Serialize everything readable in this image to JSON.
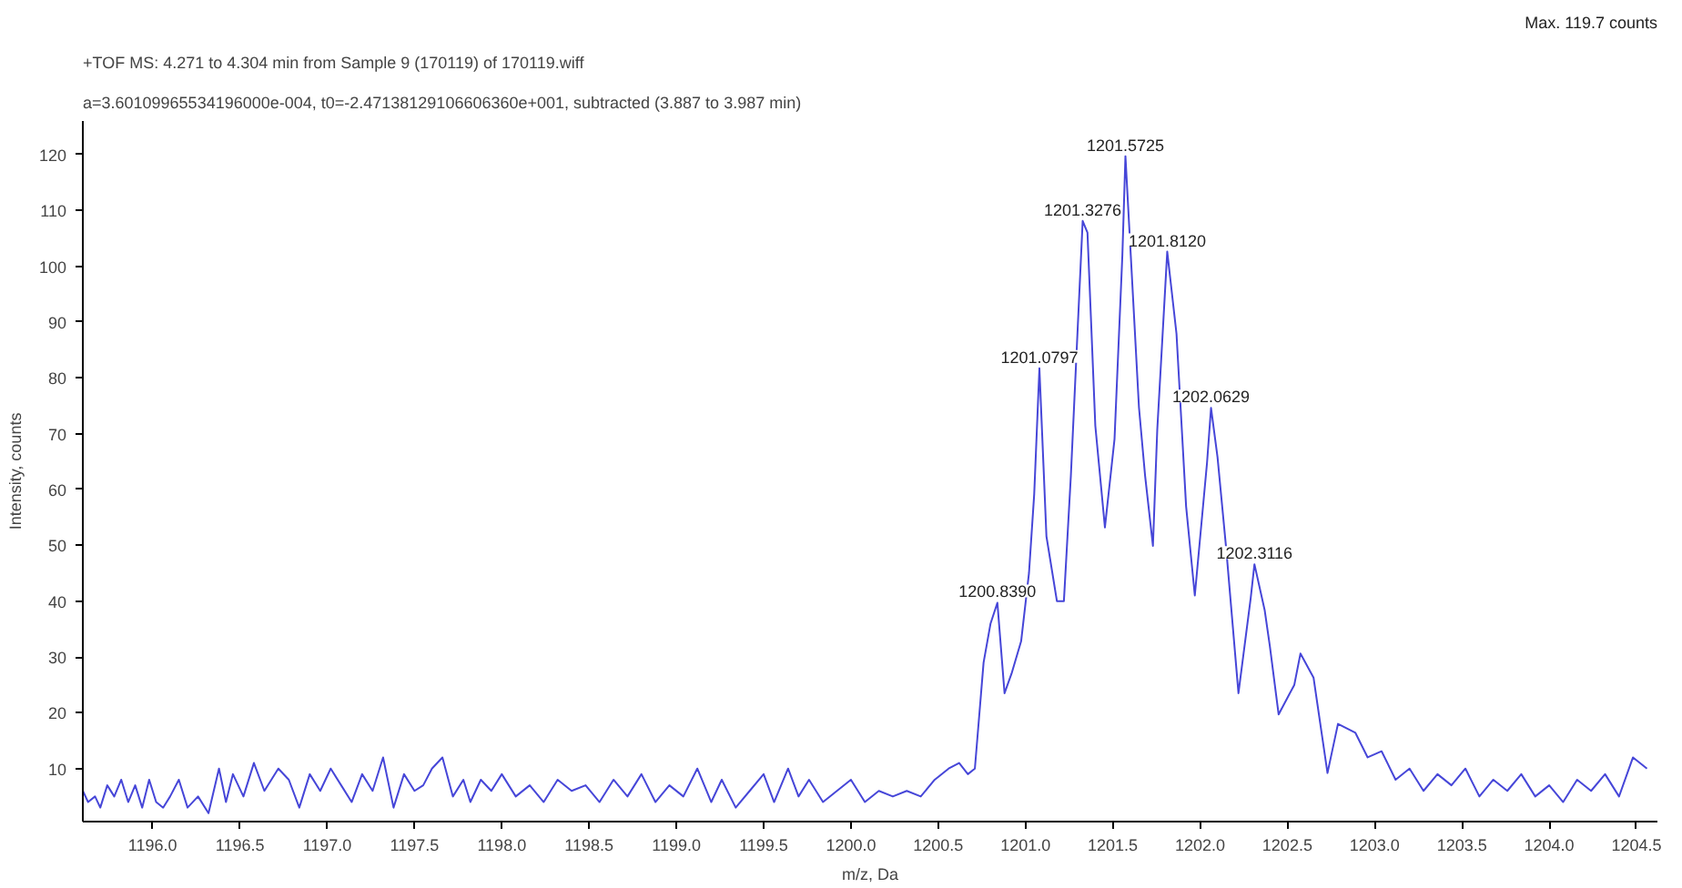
{
  "chart_data": {
    "type": "line",
    "title": "+TOF MS: 4.271 to 4.304 min from Sample 9 (170119) of 170119.wiff",
    "subtitle": "a=3.60109965534196000e-004, t0=-2.47138129106606360e+001, subtracted (3.887 to 3.987 min)",
    "xlabel": "m/z, Da",
    "ylabel": "Intensity, counts",
    "x": [
      1195.6,
      1195.63,
      1195.67,
      1195.7,
      1195.74,
      1195.78,
      1195.82,
      1195.86,
      1195.9,
      1195.94,
      1195.98,
      1196.02,
      1196.06,
      1196.1,
      1196.15,
      1196.2,
      1196.26,
      1196.32,
      1196.38,
      1196.42,
      1196.46,
      1196.52,
      1196.58,
      1196.64,
      1196.72,
      1196.78,
      1196.84,
      1196.9,
      1196.96,
      1197.02,
      1197.08,
      1197.14,
      1197.2,
      1197.26,
      1197.32,
      1197.38,
      1197.44,
      1197.5,
      1197.55,
      1197.6,
      1197.66,
      1197.72,
      1197.78,
      1197.82,
      1197.88,
      1197.94,
      1198.0,
      1198.08,
      1198.16,
      1198.24,
      1198.32,
      1198.4,
      1198.48,
      1198.56,
      1198.64,
      1198.72,
      1198.8,
      1198.88,
      1198.96,
      1199.04,
      1199.12,
      1199.2,
      1199.26,
      1199.34,
      1199.42,
      1199.5,
      1199.56,
      1199.64,
      1199.7,
      1199.76,
      1199.84,
      1199.92,
      1200.0,
      1200.08,
      1200.16,
      1200.24,
      1200.32,
      1200.4,
      1200.48,
      1200.56,
      1200.62,
      1200.67,
      1200.71,
      1200.76,
      1200.8,
      1200.839,
      1200.88,
      1200.92,
      1200.975,
      1201.02,
      1201.05,
      1201.0797,
      1201.12,
      1201.18,
      1201.22,
      1201.26,
      1201.3276,
      1201.355,
      1201.4,
      1201.455,
      1201.51,
      1201.555,
      1201.5725,
      1201.65,
      1201.685,
      1201.73,
      1201.755,
      1201.812,
      1201.865,
      1201.92,
      1201.97,
      1202.04,
      1202.0629,
      1202.1,
      1202.15,
      1202.22,
      1202.29,
      1202.3116,
      1202.37,
      1202.4,
      1202.45,
      1202.54,
      1202.575,
      1202.65,
      1202.73,
      1202.79,
      1202.89,
      1202.96,
      1203.04,
      1203.12,
      1203.2,
      1203.28,
      1203.36,
      1203.44,
      1203.52,
      1203.6,
      1203.68,
      1203.76,
      1203.84,
      1203.92,
      1204.0,
      1204.08,
      1204.16,
      1204.24,
      1204.32,
      1204.4,
      1204.48,
      1204.56
    ],
    "series": [
      {
        "color": "#4646d8",
        "values": [
          6,
          4,
          5,
          3,
          7,
          5,
          8,
          4,
          7,
          3,
          8,
          4,
          3,
          5,
          8,
          3,
          5,
          2,
          10,
          4,
          9,
          5,
          11,
          6,
          10,
          8,
          3,
          9,
          6,
          10,
          7,
          4,
          9,
          6,
          12,
          3,
          9,
          6,
          7,
          10,
          12,
          5,
          8,
          4,
          8,
          6,
          9,
          5,
          7,
          4,
          8,
          6,
          7,
          4,
          8,
          5,
          9,
          4,
          7,
          5,
          10,
          4,
          8,
          3,
          6,
          9,
          4,
          10,
          5,
          8,
          4,
          6,
          8,
          4,
          6,
          5,
          6,
          5,
          8,
          10,
          11,
          9,
          10,
          29,
          36,
          39.7,
          23.5,
          27,
          32.8,
          45,
          59.2,
          81.7,
          51.6,
          40,
          40,
          62.5,
          108.1,
          106,
          71.4,
          53.2,
          69,
          102,
          119.7,
          74.7,
          62.5,
          49.9,
          70.8,
          102.6,
          87.9,
          57,
          41,
          64.8,
          74.6,
          65.8,
          49.3,
          23.5,
          40.5,
          46.6,
          38.4,
          31.9,
          19.7,
          25,
          30.6,
          26.3,
          9.2,
          18,
          16.4,
          12,
          13.1,
          8,
          10,
          6,
          9,
          7,
          10,
          5,
          8,
          6,
          9,
          5,
          7,
          4,
          8,
          6,
          9,
          5,
          12,
          10
        ]
      }
    ],
    "xlim": [
      1195.6,
      1204.62
    ],
    "ylim": [
      0.5,
      126
    ],
    "xticks": [
      {
        "value": 1196.0,
        "label": "1196.0"
      },
      {
        "value": 1196.5,
        "label": "1196.5"
      },
      {
        "value": 1197.0,
        "label": "1197.0"
      },
      {
        "value": 1197.5,
        "label": "1197.5"
      },
      {
        "value": 1198.0,
        "label": "1198.0"
      },
      {
        "value": 1198.5,
        "label": "1198.5"
      },
      {
        "value": 1199.0,
        "label": "1199.0"
      },
      {
        "value": 1199.5,
        "label": "1199.5"
      },
      {
        "value": 1200.0,
        "label": "1200.0"
      },
      {
        "value": 1200.5,
        "label": "1200.5"
      },
      {
        "value": 1201.0,
        "label": "1201.0"
      },
      {
        "value": 1201.5,
        "label": "1201.5"
      },
      {
        "value": 1202.0,
        "label": "1202.0"
      },
      {
        "value": 1202.5,
        "label": "1202.5"
      },
      {
        "value": 1203.0,
        "label": "1203.0"
      },
      {
        "value": 1203.5,
        "label": "1203.5"
      },
      {
        "value": 1204.0,
        "label": "1204.0"
      },
      {
        "value": 1204.5,
        "label": "1204.5"
      }
    ],
    "yticks": [
      10,
      20,
      30,
      40,
      50,
      60,
      70,
      80,
      90,
      100,
      110,
      120
    ],
    "grid": false,
    "marker": "none",
    "line_style": "solid",
    "annotations": [
      {
        "text": "1200.8390",
        "x": 1200.839,
        "y": 39.7
      },
      {
        "text": "1201.0797",
        "x": 1201.0797,
        "y": 81.7
      },
      {
        "text": "1201.3276",
        "x": 1201.3276,
        "y": 108.1
      },
      {
        "text": "1201.5725",
        "x": 1201.5725,
        "y": 119.7
      },
      {
        "text": "1201.8120",
        "x": 1201.812,
        "y": 102.6
      },
      {
        "text": "1202.0629",
        "x": 1202.0629,
        "y": 74.6
      },
      {
        "text": "1202.3116",
        "x": 1202.3116,
        "y": 46.6
      },
      "Max. 119.7 counts"
    ]
  }
}
